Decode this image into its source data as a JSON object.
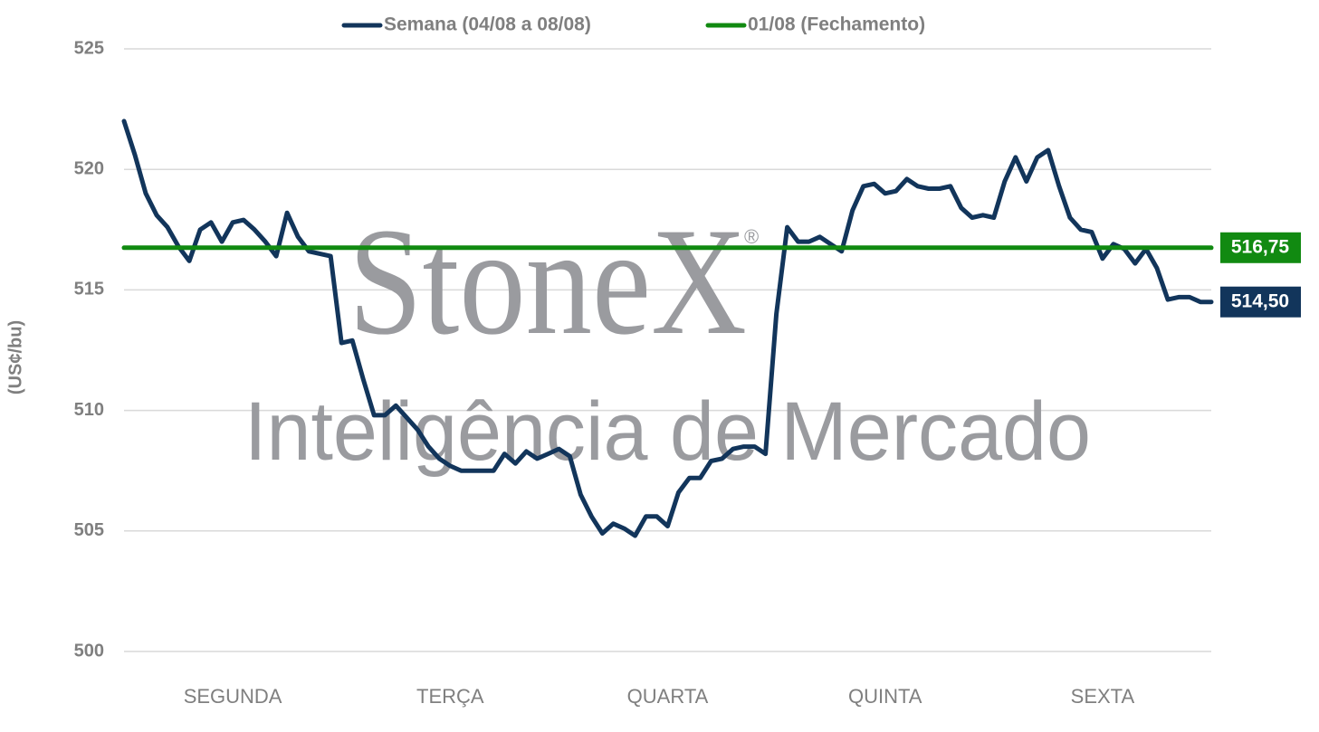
{
  "chart_data": {
    "type": "line",
    "y_label": "(US¢/bu)",
    "watermark": {
      "title": "StoneX",
      "mark": "®",
      "subtitle": "Inteligência de Mercado"
    },
    "xlim": [
      0,
      5
    ],
    "xticks": [
      {
        "value": 0.5,
        "label": "SEGUNDA"
      },
      {
        "value": 1.5,
        "label": "TERÇA"
      },
      {
        "value": 2.5,
        "label": "QUARTA"
      },
      {
        "value": 3.5,
        "label": "QUINTA"
      },
      {
        "value": 4.5,
        "label": "SEXTA"
      }
    ],
    "ylim": [
      500,
      525
    ],
    "yticks": [
      500,
      505,
      510,
      515,
      520,
      525
    ],
    "grid": true,
    "series": [
      {
        "name": "Semana (04/08 a 08/08)",
        "color": "#12355b",
        "end_label": "514,50",
        "x": [
          0,
          0.05,
          0.1,
          0.15,
          0.2,
          0.25,
          0.3,
          0.35,
          0.4,
          0.45,
          0.5,
          0.55,
          0.6,
          0.65,
          0.7,
          0.75,
          0.8,
          0.85,
          0.9,
          0.95,
          1,
          1.05,
          1.1,
          1.15,
          1.2,
          1.25,
          1.3,
          1.35,
          1.4,
          1.45,
          1.5,
          1.55,
          1.6,
          1.65,
          1.7,
          1.75,
          1.8,
          1.85,
          1.9,
          1.95,
          2,
          2.05,
          2.1,
          2.15,
          2.2,
          2.25,
          2.3,
          2.35,
          2.4,
          2.45,
          2.5,
          2.55,
          2.6,
          2.65,
          2.7,
          2.75,
          2.8,
          2.85,
          2.9,
          2.95,
          3,
          3.05,
          3.1,
          3.15,
          3.2,
          3.25,
          3.3,
          3.35,
          3.4,
          3.45,
          3.5,
          3.55,
          3.6,
          3.65,
          3.7,
          3.75,
          3.8,
          3.85,
          3.9,
          3.95,
          4,
          4.05,
          4.1,
          4.15,
          4.2,
          4.25,
          4.3,
          4.35,
          4.4,
          4.45,
          4.5,
          4.55,
          4.6,
          4.65,
          4.7,
          4.75,
          4.8,
          4.85,
          4.9,
          4.95,
          5
        ],
        "values": [
          522.0,
          520.6,
          519.0,
          518.1,
          517.6,
          516.8,
          516.2,
          517.5,
          517.8,
          517.0,
          517.8,
          517.9,
          517.5,
          517.0,
          516.4,
          518.2,
          517.2,
          516.6,
          516.5,
          516.4,
          512.8,
          512.9,
          511.3,
          509.8,
          509.8,
          510.2,
          509.7,
          509.2,
          508.5,
          508.0,
          507.7,
          507.5,
          507.5,
          507.5,
          507.5,
          508.2,
          507.8,
          508.3,
          508.0,
          508.2,
          508.4,
          508.1,
          506.5,
          505.6,
          504.9,
          505.3,
          505.1,
          504.8,
          505.6,
          505.6,
          505.2,
          506.6,
          507.2,
          507.2,
          507.9,
          508.0,
          508.4,
          508.5,
          508.5,
          508.2,
          514.0,
          517.6,
          517.0,
          517.0,
          517.2,
          516.9,
          516.6,
          518.3,
          519.3,
          519.4,
          519.0,
          519.1,
          519.6,
          519.3,
          519.2,
          519.2,
          519.3,
          518.4,
          518.0,
          518.1,
          518.0,
          519.5,
          520.5,
          519.5,
          520.5,
          520.8,
          519.3,
          518.0,
          517.5,
          517.4,
          516.3,
          516.9,
          516.7,
          516.1,
          516.7,
          515.9,
          514.6,
          514.7,
          514.7,
          514.5,
          514.5
        ]
      },
      {
        "name": "01/08 (Fechamento)",
        "color": "#118a11",
        "end_label": "516,75",
        "x": [
          0,
          5
        ],
        "values": [
          516.75,
          516.75
        ]
      }
    ]
  }
}
